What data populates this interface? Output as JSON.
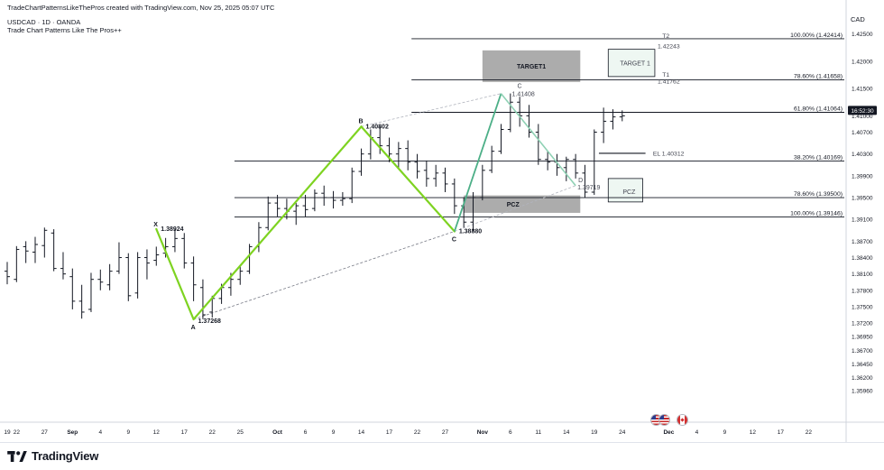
{
  "header": {
    "source_line": "TradeChartPatternsLikeThePros created with TradingView.com, Nov 25, 2025 05:07 UTC",
    "symbol_line": "USDCAD · 1D · OANDA",
    "indicator_line": "Trade Chart Patterns Like The Pros++"
  },
  "footer": {
    "brand": "TradingView"
  },
  "chart_data": {
    "type": "candlestick",
    "symbol": "USDCAD",
    "interval": "1D",
    "currency_label": "CAD",
    "current_price_time": "16:52:30",
    "ylim": [
      1.3548,
      1.4276
    ],
    "y_ticks": [
      "1.42500",
      "1.42000",
      "1.41500",
      "1.41000",
      "1.40700",
      "1.40300",
      "1.39900",
      "1.39500",
      "1.39100",
      "1.38700",
      "1.38400",
      "1.38100",
      "1.37800",
      "1.37500",
      "1.37200",
      "1.36950",
      "1.36700",
      "1.36450",
      "1.36200",
      "1.35960"
    ],
    "x_ticks": [
      {
        "label": "19",
        "idx": 0
      },
      {
        "label": "22",
        "idx": 1
      },
      {
        "label": "27",
        "idx": 4
      },
      {
        "label": "Sep",
        "idx": 7
      },
      {
        "label": "4",
        "idx": 10
      },
      {
        "label": "9",
        "idx": 13
      },
      {
        "label": "12",
        "idx": 16
      },
      {
        "label": "17",
        "idx": 19
      },
      {
        "label": "22",
        "idx": 22
      },
      {
        "label": "25",
        "idx": 25
      },
      {
        "label": "Oct",
        "idx": 29
      },
      {
        "label": "6",
        "idx": 32
      },
      {
        "label": "9",
        "idx": 35
      },
      {
        "label": "14",
        "idx": 38
      },
      {
        "label": "17",
        "idx": 41
      },
      {
        "label": "22",
        "idx": 44
      },
      {
        "label": "27",
        "idx": 47
      },
      {
        "label": "Nov",
        "idx": 51
      },
      {
        "label": "6",
        "idx": 54
      },
      {
        "label": "11",
        "idx": 57
      },
      {
        "label": "14",
        "idx": 60
      },
      {
        "label": "19",
        "idx": 63
      },
      {
        "label": "24",
        "idx": 66
      },
      {
        "label": "Dec",
        "idx": 71
      },
      {
        "label": "4",
        "idx": 74
      },
      {
        "label": "9",
        "idx": 77
      },
      {
        "label": "12",
        "idx": 80
      },
      {
        "label": "17",
        "idx": 83
      },
      {
        "label": "22",
        "idx": 86
      }
    ],
    "candles": [
      [
        1.3815,
        1.3832,
        1.3791,
        1.3805
      ],
      [
        1.38,
        1.3861,
        1.3795,
        1.3855
      ],
      [
        1.386,
        1.387,
        1.383,
        1.3852
      ],
      [
        1.385,
        1.3878,
        1.383,
        1.3864
      ],
      [
        1.3862,
        1.3895,
        1.384,
        1.389
      ],
      [
        1.3885,
        1.3892,
        1.3815,
        1.382
      ],
      [
        1.382,
        1.385,
        1.38,
        1.381
      ],
      [
        1.3805,
        1.382,
        1.3745,
        1.376
      ],
      [
        1.376,
        1.379,
        1.3728,
        1.374
      ],
      [
        1.3745,
        1.3812,
        1.374,
        1.38
      ],
      [
        1.38,
        1.3818,
        1.378,
        1.3795
      ],
      [
        1.379,
        1.3828,
        1.378,
        1.3815
      ],
      [
        1.3815,
        1.3868,
        1.381,
        1.384
      ],
      [
        1.384,
        1.3848,
        1.376,
        1.377
      ],
      [
        1.3775,
        1.385,
        1.3765,
        1.384
      ],
      [
        1.384,
        1.3855,
        1.38,
        1.383
      ],
      [
        1.3835,
        1.386,
        1.3825,
        1.3845
      ],
      [
        1.3848,
        1.3876,
        1.384,
        1.386
      ],
      [
        1.386,
        1.3892,
        1.385,
        1.3875
      ],
      [
        1.3875,
        1.3885,
        1.382,
        1.383
      ],
      [
        1.383,
        1.3842,
        1.376,
        1.379
      ],
      [
        1.3785,
        1.38,
        1.3727,
        1.3735
      ],
      [
        1.374,
        1.377,
        1.373,
        1.3765
      ],
      [
        1.3765,
        1.3792,
        1.3755,
        1.3785
      ],
      [
        1.3785,
        1.3812,
        1.377,
        1.38
      ],
      [
        1.38,
        1.3825,
        1.379,
        1.3815
      ],
      [
        1.3815,
        1.3865,
        1.381,
        1.386
      ],
      [
        1.386,
        1.3905,
        1.385,
        1.3895
      ],
      [
        1.3895,
        1.3952,
        1.389,
        1.394
      ],
      [
        1.394,
        1.3955,
        1.3915,
        1.393
      ],
      [
        1.393,
        1.3948,
        1.391,
        1.3925
      ],
      [
        1.3925,
        1.394,
        1.39,
        1.3935
      ],
      [
        1.3935,
        1.3955,
        1.3915,
        1.3928
      ],
      [
        1.393,
        1.3965,
        1.3925,
        1.3958
      ],
      [
        1.3958,
        1.3972,
        1.3935,
        1.395
      ],
      [
        1.395,
        1.3962,
        1.393,
        1.3945
      ],
      [
        1.3945,
        1.396,
        1.3935,
        1.3948
      ],
      [
        1.3948,
        1.4005,
        1.394,
        1.3998
      ],
      [
        1.3998,
        1.404,
        1.399,
        1.403
      ],
      [
        1.403,
        1.4075,
        1.402,
        1.406
      ],
      [
        1.406,
        1.408,
        1.403,
        1.4045
      ],
      [
        1.4045,
        1.406,
        1.4015,
        1.403
      ],
      [
        1.403,
        1.4052,
        1.4005,
        1.404
      ],
      [
        1.404,
        1.4055,
        1.4,
        1.4015
      ],
      [
        1.4015,
        1.403,
        1.3985,
        1.3998
      ],
      [
        1.4,
        1.4018,
        1.397,
        1.3985
      ],
      [
        1.3985,
        1.401,
        1.397,
        1.3995
      ],
      [
        1.3995,
        1.4005,
        1.396,
        1.3975
      ],
      [
        1.3975,
        1.3985,
        1.392,
        1.3935
      ],
      [
        1.3935,
        1.395,
        1.3895,
        1.3905
      ],
      [
        1.3905,
        1.396,
        1.3888,
        1.395
      ],
      [
        1.395,
        1.401,
        1.3945,
        1.4
      ],
      [
        1.4,
        1.4045,
        1.3995,
        1.4035
      ],
      [
        1.4035,
        1.4085,
        1.403,
        1.4075
      ],
      [
        1.4075,
        1.4141,
        1.407,
        1.4125
      ],
      [
        1.4125,
        1.4135,
        1.408,
        1.41
      ],
      [
        1.41,
        1.412,
        1.406,
        1.407
      ],
      [
        1.407,
        1.4085,
        1.401,
        1.402
      ],
      [
        1.402,
        1.4035,
        1.4,
        1.4015
      ],
      [
        1.4015,
        1.403,
        1.399,
        1.4005
      ],
      [
        1.4005,
        1.4025,
        1.398,
        1.402
      ],
      [
        1.402,
        1.403,
        1.3985,
        1.3995
      ],
      [
        1.3995,
        1.401,
        1.395,
        1.396
      ],
      [
        1.396,
        1.4075,
        1.3955,
        1.407
      ],
      [
        1.407,
        1.4115,
        1.405,
        1.409
      ],
      [
        1.409,
        1.4112,
        1.4075,
        1.4098
      ],
      [
        1.4098,
        1.411,
        1.409,
        1.41
      ]
    ],
    "fib_levels": [
      {
        "label": "100.00% (1.42414)",
        "price": 1.42414,
        "x_start_idx": 43
      },
      {
        "label": "78.60% (1.41658)",
        "price": 1.41658,
        "x_start_idx": 43
      },
      {
        "label": "61.80% (1.41064)",
        "price": 1.41064,
        "x_start_idx": 43
      },
      {
        "label": "38.20% (1.40169)",
        "price": 1.40169,
        "x_start_idx": 24
      },
      {
        "label": "78.60% (1.39500)",
        "price": 1.395,
        "x_start_idx": 24
      },
      {
        "label": "100.00% (1.39146)",
        "price": 1.39146,
        "x_start_idx": 24
      }
    ],
    "current_price": 1.411,
    "pattern_points": {
      "X": {
        "label": "X",
        "value": "1.38924",
        "idx": 16,
        "price": 1.38924
      },
      "A": {
        "label": "A",
        "value": "1.37268",
        "idx": 20,
        "price": 1.37268
      },
      "B": {
        "label": "B",
        "value": "1.40802",
        "idx": 38,
        "price": 1.40802
      },
      "C": {
        "label": "C",
        "value": "1.38880",
        "idx": 48,
        "price": 1.3888
      },
      "C2": {
        "label": "C",
        "value": "1.41408",
        "idx": 53,
        "price": 1.41408
      },
      "D": {
        "label": "D",
        "value": "1.39719",
        "idx": 61,
        "price": 1.39719
      }
    },
    "annotations": {
      "target1_zone": "TARGET1",
      "target1_small": "TARGET 1",
      "pcz_zone": "PCZ",
      "pcz_small": "PCZ",
      "t2_label": "T2",
      "t2_value": "1.42243",
      "t1_label": "T1",
      "t1_value": "1.41762",
      "el_label": "EL 1.40312"
    }
  }
}
